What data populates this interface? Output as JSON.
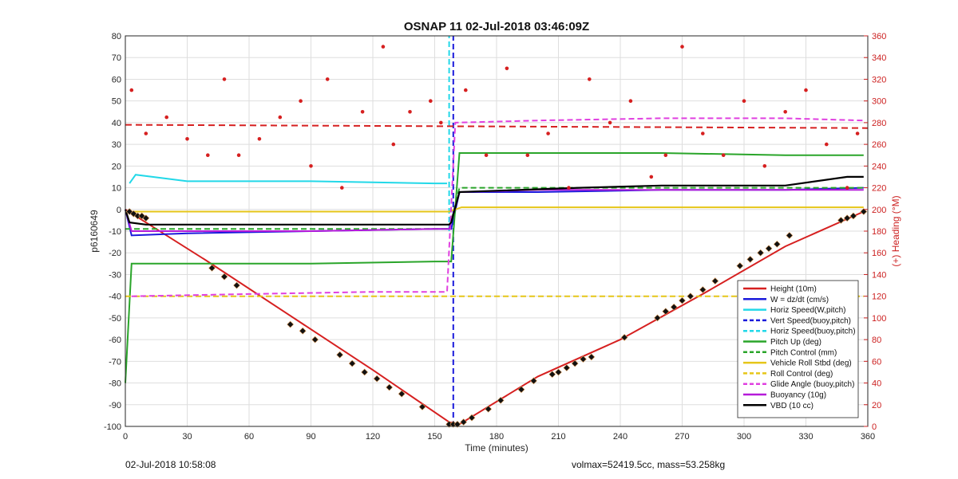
{
  "chart_data": {
    "type": "line",
    "title": "OSNAP 11 02-Jul-2018 03:46:09Z",
    "xlabel": "Time (minutes)",
    "ylabel": "p6160649",
    "ylabel_right": "(+) Heading (°M)",
    "xlim": [
      0,
      360
    ],
    "ylim": [
      -100,
      80
    ],
    "ylim_right": [
      0,
      360
    ],
    "xticks": [
      0,
      30,
      60,
      90,
      120,
      150,
      180,
      210,
      240,
      270,
      300,
      330,
      360
    ],
    "yticks": [
      -100,
      -90,
      -80,
      -70,
      -60,
      -50,
      -40,
      -30,
      -20,
      -10,
      0,
      10,
      20,
      30,
      40,
      50,
      60,
      70,
      80
    ],
    "yticks_right": [
      0,
      20,
      40,
      60,
      80,
      100,
      120,
      140,
      160,
      180,
      200,
      220,
      240,
      260,
      280,
      300,
      320,
      340,
      360
    ],
    "grid": true,
    "legend_position": "bottom-right",
    "series": [
      {
        "name": "Height (10m)",
        "color": "#d62020",
        "style": "solid",
        "x": [
          0,
          40,
          80,
          120,
          157,
          162,
          200,
          240,
          280,
          320,
          358
        ],
        "values": [
          0,
          -24,
          -49,
          -74,
          -98,
          -99,
          -77,
          -60,
          -39,
          -17,
          -1
        ]
      },
      {
        "name": "W = dz/dt (cm/s)",
        "color": "#1a1adb",
        "style": "solid",
        "x": [
          0,
          3,
          30,
          90,
          150,
          158,
          162,
          200,
          260,
          320,
          358
        ],
        "values": [
          0,
          -12,
          -11,
          -10,
          -9,
          -9,
          8,
          8,
          9,
          9,
          10
        ]
      },
      {
        "name": "Horiz Speed(W,pitch)",
        "color": "#22d8e8",
        "style": "solid",
        "x": [
          2,
          5,
          30,
          90,
          150,
          156
        ],
        "values": [
          12,
          16,
          13,
          13,
          12,
          12
        ]
      },
      {
        "name": "Vert Speed(buoy,pitch)",
        "color": "#1a1adb",
        "style": "dashed",
        "x": [
          159,
          159
        ],
        "values": [
          -100,
          80
        ]
      },
      {
        "name": "Horiz Speed(buoy,pitch)",
        "color": "#22d8e8",
        "style": "dashed",
        "x": [
          157,
          157
        ],
        "values": [
          -10,
          80
        ]
      },
      {
        "name": "Pitch Up (deg)",
        "color": "#2aa52a",
        "style": "solid",
        "x": [
          0,
          3,
          30,
          90,
          150,
          158,
          162,
          200,
          260,
          320,
          358
        ],
        "values": [
          -80,
          -25,
          -25,
          -25,
          -24,
          -24,
          26,
          26,
          26,
          25,
          25
        ]
      },
      {
        "name": "Pitch Control (mm)",
        "color": "#2aa52a",
        "style": "dashed",
        "x": [
          0,
          157,
          162,
          358
        ],
        "values": [
          -9,
          -9,
          10,
          10
        ]
      },
      {
        "name": "Vehicle Roll Stbd (deg)",
        "color": "#e6c619",
        "style": "solid",
        "x": [
          0,
          157,
          163,
          358
        ],
        "values": [
          -1,
          -1,
          1,
          1
        ]
      },
      {
        "name": "Roll Control (deg)",
        "color": "#e6c619",
        "style": "dashed",
        "x": [
          0,
          157,
          163,
          358
        ],
        "values": [
          -40,
          -40,
          -40,
          -40
        ]
      },
      {
        "name": "Glide Angle (buoy,pitch)",
        "color": "#e040e0",
        "style": "dashed",
        "x": [
          3,
          60,
          120,
          156,
          160,
          200,
          260,
          320,
          358
        ],
        "values": [
          -40,
          -39,
          -38,
          -38,
          40,
          41,
          42,
          42,
          41
        ]
      },
      {
        "name": "Buoyancy (10g)",
        "color": "#b51ad9",
        "style": "solid",
        "x": [
          0,
          3,
          30,
          90,
          150,
          157,
          162,
          200,
          260,
          320,
          358
        ],
        "values": [
          0,
          -10,
          -10,
          -10,
          -9,
          -9,
          8,
          9,
          9,
          9,
          9
        ]
      },
      {
        "name": "VBD (10 cc)",
        "color": "#000000",
        "style": "solid",
        "x": [
          0,
          2,
          10,
          157,
          158,
          162,
          220,
          260,
          320,
          350,
          358
        ],
        "values": [
          0,
          -6,
          -7,
          -7,
          -6,
          8,
          10,
          11,
          11,
          15,
          15
        ]
      }
    ],
    "heading": {
      "name": "(+) Heading (°M)",
      "color": "#d62020",
      "mean_line_values": [
        278,
        275
      ],
      "x": [
        3,
        10,
        20,
        30,
        40,
        48,
        55,
        65,
        75,
        85,
        90,
        98,
        105,
        115,
        125,
        130,
        138,
        148,
        153,
        165,
        175,
        185,
        195,
        205,
        215,
        225,
        235,
        245,
        255,
        262,
        270,
        280,
        290,
        300,
        310,
        320,
        330,
        340,
        350,
        355
      ],
      "values": [
        310,
        270,
        285,
        265,
        250,
        320,
        250,
        265,
        285,
        300,
        240,
        320,
        220,
        290,
        350,
        260,
        290,
        300,
        280,
        310,
        250,
        330,
        250,
        270,
        220,
        320,
        280,
        300,
        230,
        250,
        350,
        270,
        250,
        300,
        240,
        290,
        310,
        260,
        220,
        270
      ]
    },
    "markers_on_height": {
      "x": [
        2,
        4,
        6,
        8,
        10,
        42,
        48,
        54,
        80,
        86,
        92,
        104,
        110,
        116,
        122,
        128,
        134,
        144,
        157,
        159,
        161,
        164,
        168,
        176,
        182,
        192,
        198,
        207,
        210,
        214,
        218,
        222,
        226,
        242,
        258,
        262,
        266,
        270,
        274,
        280,
        286,
        298,
        303,
        308,
        312,
        316,
        322,
        347,
        350,
        353,
        358
      ],
      "values": [
        -1,
        -2,
        -3,
        -3,
        -4,
        -27,
        -31,
        -35,
        -53,
        -56,
        -60,
        -67,
        -71,
        -75,
        -78,
        -82,
        -85,
        -91,
        -99,
        -99,
        -99,
        -98,
        -96,
        -92,
        -88,
        -83,
        -79,
        -76,
        -75,
        -73,
        -71,
        -69,
        -68,
        -59,
        -50,
        -47,
        -45,
        -42,
        -40,
        -37,
        -33,
        -26,
        -23,
        -20,
        -18,
        -16,
        -12,
        -5,
        -4,
        -3,
        -1
      ]
    }
  },
  "footer": {
    "left": "02-Jul-2018 10:58:08",
    "right": "volmax=52419.5cc, mass=53.258kg"
  }
}
